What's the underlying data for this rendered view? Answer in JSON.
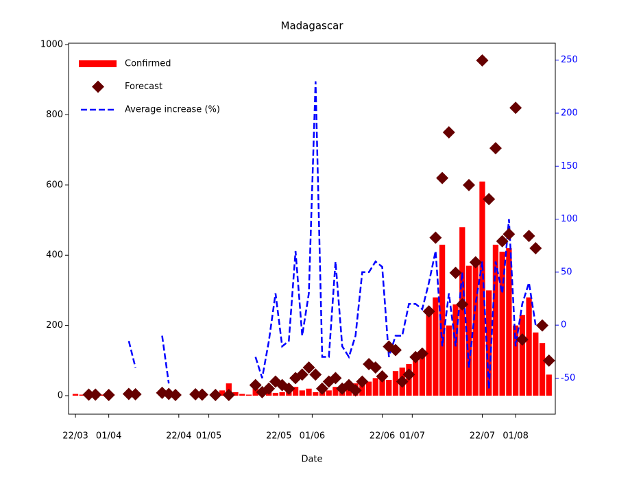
{
  "chart_data": {
    "type": "bar",
    "title": "Madagascar",
    "xlabel": "Date",
    "x": [
      0,
      2,
      4,
      6,
      8,
      10,
      12,
      14,
      16,
      18,
      20,
      22,
      24,
      26,
      28,
      30,
      32,
      34,
      36,
      38,
      40,
      42,
      44,
      46,
      48,
      50,
      52,
      54,
      56,
      58,
      60,
      62,
      64,
      66,
      68,
      70,
      72,
      74,
      76,
      78,
      80,
      82,
      84,
      86,
      88,
      90,
      92,
      94,
      96,
      98,
      100,
      102,
      104,
      106,
      108,
      110,
      112,
      114,
      116,
      118,
      120,
      122,
      124,
      126,
      128,
      130,
      132,
      134,
      136,
      138,
      140,
      142
    ],
    "series": [
      {
        "name": "Confirmed",
        "type": "bar",
        "color": "#ff0000",
        "values": [
          5,
          3,
          4,
          2,
          3,
          2,
          0,
          0,
          5,
          3,
          0,
          0,
          0,
          0,
          0,
          1,
          0,
          0,
          0,
          2,
          0,
          10,
          15,
          35,
          10,
          5,
          3,
          25,
          15,
          10,
          8,
          10,
          20,
          25,
          15,
          20,
          10,
          20,
          15,
          25,
          30,
          25,
          35,
          40,
          40,
          50,
          60,
          45,
          70,
          80,
          90,
          100,
          120,
          250,
          280,
          430,
          200,
          260,
          480,
          370,
          380,
          610,
          300,
          430,
          410,
          420,
          200,
          230,
          280,
          180,
          150,
          60
        ]
      },
      {
        "name": "Forecast",
        "type": "scatter",
        "color": "#660000",
        "values": [
          null,
          null,
          3,
          3,
          null,
          2,
          null,
          null,
          5,
          4,
          null,
          null,
          null,
          8,
          5,
          2,
          null,
          null,
          4,
          3,
          null,
          2,
          null,
          2,
          null,
          null,
          null,
          30,
          10,
          20,
          40,
          30,
          20,
          50,
          60,
          80,
          60,
          20,
          40,
          50,
          20,
          30,
          15,
          40,
          90,
          80,
          55,
          140,
          130,
          40,
          60,
          110,
          120,
          240,
          450,
          620,
          750,
          350,
          260,
          600,
          380,
          955,
          560,
          705,
          440,
          460,
          820,
          160,
          455,
          420,
          200,
          100
        ]
      },
      {
        "name": "Average increase (%)",
        "type": "line",
        "axis": "y2",
        "color": "#0000ff",
        "values": [
          null,
          null,
          -45,
          null,
          null,
          null,
          null,
          null,
          -15,
          -40,
          null,
          null,
          null,
          -10,
          -55,
          null,
          null,
          null,
          0,
          null,
          null,
          null,
          null,
          null,
          null,
          null,
          null,
          -30,
          -50,
          -15,
          30,
          -20,
          -15,
          70,
          -10,
          30,
          230,
          -30,
          -30,
          60,
          -20,
          -30,
          -10,
          50,
          50,
          60,
          55,
          -30,
          -10,
          -10,
          20,
          20,
          15,
          40,
          70,
          -20,
          30,
          -20,
          50,
          -40,
          20,
          60,
          -60,
          60,
          30,
          100,
          -20,
          20,
          40,
          0,
          null,
          null
        ]
      }
    ],
    "xlim": [
      -2.06,
      143.9
    ],
    "xticks": [
      {
        "value": 0,
        "label": "22/03"
      },
      {
        "value": 10,
        "label": "01/04"
      },
      {
        "value": 31,
        "label": "22/04"
      },
      {
        "value": 40,
        "label": "01/05"
      },
      {
        "value": 61,
        "label": "22/05"
      },
      {
        "value": 71,
        "label": "01/06"
      },
      {
        "value": 92,
        "label": "22/06"
      },
      {
        "value": 101,
        "label": "01/07"
      },
      {
        "value": 122,
        "label": "22/07"
      },
      {
        "value": 132,
        "label": "01/08"
      }
    ],
    "ylim": [
      -52.7,
      1004
    ],
    "yticks": [
      0,
      200,
      400,
      600,
      800,
      1000
    ],
    "y2lim": [
      -84,
      266
    ],
    "y2ticks": [
      -50,
      0,
      50,
      100,
      150,
      200,
      250
    ],
    "y2_tick_color": "#0000ff",
    "legend": "upper left",
    "grid": false
  }
}
